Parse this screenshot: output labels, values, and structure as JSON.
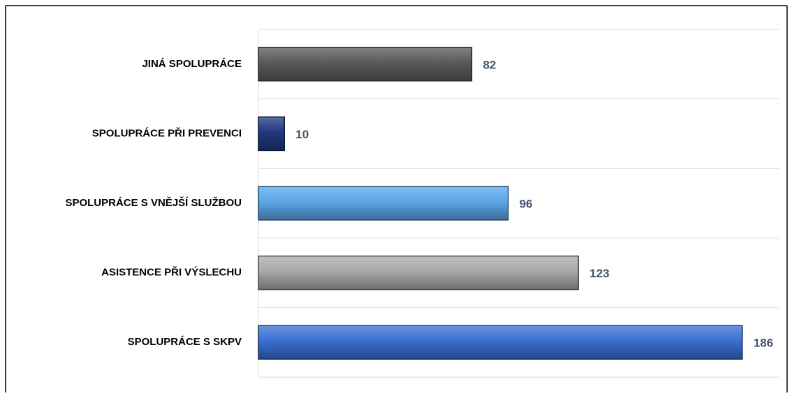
{
  "chart_data": {
    "type": "bar",
    "orientation": "horizontal",
    "categories": [
      "JINÁ SPOLUPRÁCE",
      "SPOLUPRÁCE PŘI PREVENCI",
      "SPOLUPRÁCE S VNĚJŠÍ SLUŽBOU",
      "ASISTENCE PŘI VÝSLECHU",
      "SPOLUPRÁCE S SKPV"
    ],
    "values": [
      82,
      10,
      96,
      123,
      186
    ],
    "colors": [
      "#5a5a5a",
      "#1f3b7c",
      "#5aa7e8",
      "#a8a8a8",
      "#3b6fd2"
    ],
    "xlim": [
      0,
      200
    ]
  }
}
